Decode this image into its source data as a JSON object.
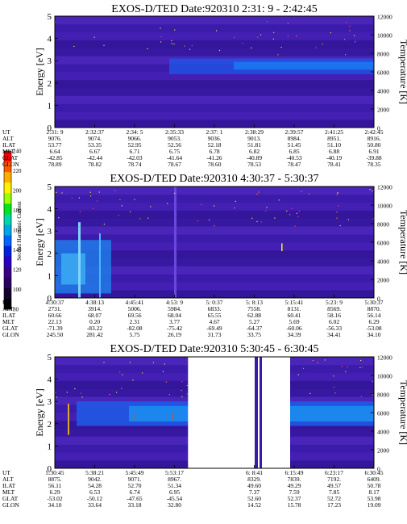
{
  "colorbar": {
    "label": "Second Harmonic Current",
    "tick_labels": [
      "240",
      "220",
      "200",
      "180",
      "160",
      "140",
      "120",
      "100",
      "80"
    ],
    "colors": [
      "#ff0000",
      "#ff5a00",
      "#ffae00",
      "#fff200",
      "#9aff00",
      "#00e61c",
      "#00d7a8",
      "#00a6e6",
      "#0064ff",
      "#0022dc",
      "#2a00c4",
      "#3a0088",
      "#2a0060",
      "#14002e",
      "#000000"
    ]
  },
  "chart_data": [
    {
      "type": "heatmap",
      "title": "EXOS-D/TED   Date:920310   2:31: 9 - 2:42:45",
      "ylabel": "Energy [eV]",
      "ylabel_right": "Temperature [K]",
      "ylim": [
        0,
        5
      ],
      "ylim_right": [
        0,
        12000
      ],
      "y_ticks": [
        "0",
        "1",
        "2",
        "3",
        "4",
        "5"
      ],
      "y_ticks_right": [
        "0",
        "2000",
        "4000",
        "6000",
        "8000",
        "10000",
        "12000"
      ],
      "data_gaps": [],
      "table": {
        "row_labels": [
          "UT",
          "ALT",
          "ILAT",
          "MLT",
          "GLAT",
          "GLON"
        ],
        "columns": [
          [
            "2:31: 9",
            "9076.",
            "53.77",
            "6.64",
            "-42.85",
            "78.89"
          ],
          [
            "2:32:37",
            "9074.",
            "53.35",
            "6.67",
            "-42.44",
            "78.82"
          ],
          [
            "2:34: 5",
            "9066.",
            "52.95",
            "6.71",
            "-42.03",
            "78.74"
          ],
          [
            "2:35:33",
            "9053.",
            "52.56",
            "6.75",
            "-41.64",
            "78.67"
          ],
          [
            "2:37: 1",
            "9036.",
            "52.18",
            "6.78",
            "-41.26",
            "78.60"
          ],
          [
            "2:38:29",
            "9013.",
            "51.81",
            "6.82",
            "-40.89",
            "78.53"
          ],
          [
            "2:39:57",
            "8984.",
            "51.45",
            "6.85",
            "-40.53",
            "78.47"
          ],
          [
            "2:41:25",
            "8951.",
            "51.10",
            "6.88",
            "-40.19",
            "78.41"
          ],
          [
            "2:42:45",
            "8916.",
            "50.80",
            "6.91",
            "-39.88",
            "78.35"
          ]
        ]
      }
    },
    {
      "type": "heatmap",
      "title": "EXOS-D/TED   Date:920310   4:30:37 - 5:30:37",
      "ylabel": "Energy [eV]",
      "ylabel_right": "Temperature [K]",
      "ylim": [
        0,
        5
      ],
      "ylim_right": [
        0,
        12000
      ],
      "y_ticks": [
        "0",
        "1",
        "2",
        "3",
        "4",
        "5"
      ],
      "y_ticks_right": [
        "0",
        "2000",
        "4000",
        "6000",
        "8000",
        "10000",
        "12000"
      ],
      "data_gaps": [],
      "table": {
        "row_labels": [
          "UT",
          "ALT",
          "ILAT",
          "MLT",
          "GLAT",
          "GLON"
        ],
        "columns": [
          [
            "4:30:37",
            "2731.",
            "60.66",
            "22.13",
            "-71.39",
            "245.50"
          ],
          [
            "4:38:13",
            "3914.",
            "68.07",
            "0.20",
            "-83.22",
            "281.42"
          ],
          [
            "4:45:41",
            "5006.",
            "69.56",
            "2.31",
            "-82.08",
            "5.75"
          ],
          [
            "4:53: 9",
            "5984.",
            "68.04",
            "3.77",
            "-75.42",
            "26.19"
          ],
          [
            "5: 0:37",
            "6833.",
            "65.55",
            "4.67",
            "-69.49",
            "31.73"
          ],
          [
            "5: 8:13",
            "7558.",
            "62.88",
            "5.27",
            "-64.37",
            "33.75"
          ],
          [
            "5:15:41",
            "8131.",
            "60.41",
            "5.69",
            "-60.06",
            "34.39"
          ],
          [
            "5:23: 9",
            "8569.",
            "58.16",
            "6.02",
            "-56.33",
            "34.41"
          ],
          [
            "5:30:37",
            "8870.",
            "56.14",
            "6.29",
            "-53.08",
            "34.10"
          ]
        ]
      }
    },
    {
      "type": "heatmap",
      "title": "EXOS-D/TED   Date:920310   5:30:45 - 6:30:45",
      "ylabel": "Energy [eV]",
      "ylabel_right": "Temperature [K]",
      "ylim": [
        0,
        5
      ],
      "ylim_right": [
        0,
        12000
      ],
      "y_ticks": [
        "0",
        "1",
        "2",
        "3",
        "4",
        "5"
      ],
      "y_ticks_right": [
        "0",
        "2000",
        "4000",
        "6000",
        "8000",
        "10000",
        "12000"
      ],
      "data_gaps": [
        [
          5.93,
          6.25
        ]
      ],
      "table": {
        "row_labels": [
          "UT",
          "ALT",
          "ILAT",
          "MLT",
          "GLAT",
          "GLON"
        ],
        "columns": [
          [
            "5:30:45",
            "8875.",
            "56.11",
            "6.29",
            "-53.02",
            "34.10"
          ],
          [
            "5:38:21",
            "9042.",
            "54.28",
            "6.53",
            "-50.12",
            "33.64"
          ],
          [
            "5:45:49",
            "9071.",
            "52.70",
            "6.74",
            "-47.65",
            "33.18"
          ],
          [
            "5:53:17",
            "8967.",
            "51.34",
            "6.95",
            "-45.54",
            "32.80"
          ],
          [
            "",
            "",
            "",
            "",
            "",
            ""
          ],
          [
            "6: 8:41",
            "8329.",
            "49.60",
            "7.37",
            "52.60",
            "14.52"
          ],
          [
            "6:15:49",
            "7839.",
            "49.29",
            "7.59",
            "52.37",
            "15.78"
          ],
          [
            "6:23:17",
            "7192.",
            "49.57",
            "7.85",
            "52.72",
            "17.23"
          ],
          [
            "6:30:45",
            "6409.",
            "50.78",
            "8.17",
            "53.98",
            "19.09"
          ]
        ]
      }
    }
  ]
}
